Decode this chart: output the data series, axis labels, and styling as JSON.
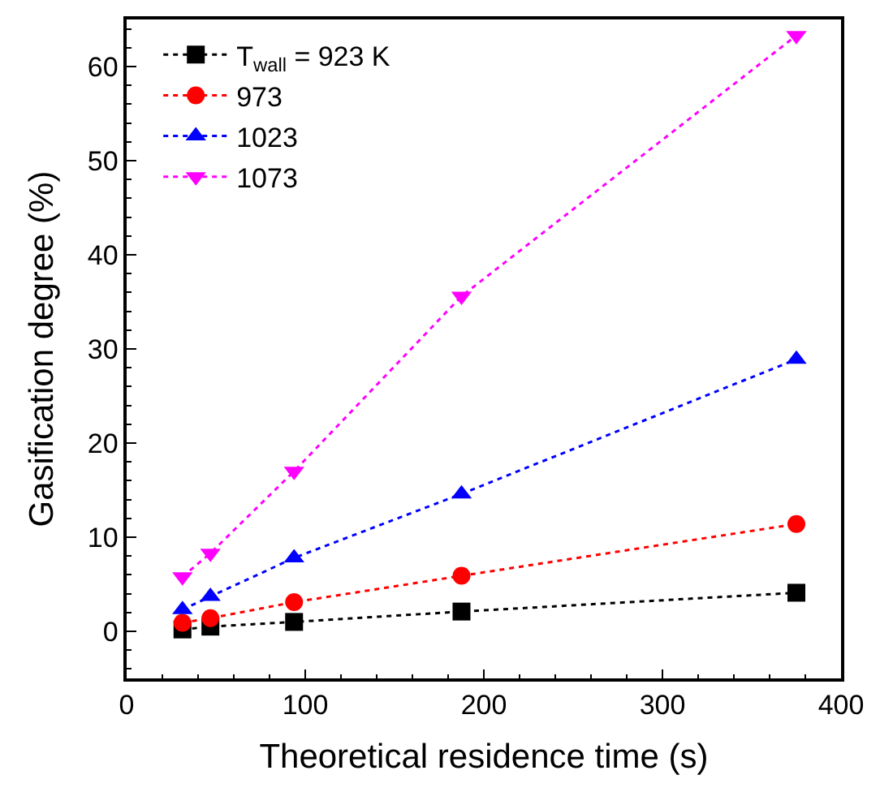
{
  "chart_data": {
    "type": "line",
    "xlabel": "Theoretical residence time (s)",
    "ylabel": "Gasification degree (%)",
    "x": [
      31.25,
      46.9,
      93.75,
      187.5,
      375
    ],
    "series": [
      {
        "name": "T$_{wall}$ = 923 K",
        "color": "#000000",
        "marker": "square",
        "values": [
          0.2,
          0.5,
          1.0,
          2.1,
          4.1
        ]
      },
      {
        "name": "973",
        "color": "#ff0000",
        "marker": "circle",
        "values": [
          0.9,
          1.4,
          3.1,
          5.9,
          11.4
        ]
      },
      {
        "name": "1023",
        "color": "#0000ff",
        "marker": "triangle",
        "values": [
          2.3,
          3.7,
          7.8,
          14.6,
          28.9
        ]
      },
      {
        "name": "1073",
        "color": "#ff00ff",
        "marker": "triangle-down",
        "values": [
          5.8,
          8.3,
          17.0,
          35.6,
          63.3
        ]
      }
    ],
    "xlim": [
      0,
      400
    ],
    "xticks": [
      0,
      100,
      200,
      300,
      400
    ],
    "ylim": [
      -5,
      65
    ],
    "yticks": [
      0,
      10,
      20,
      30,
      40,
      50,
      60
    ],
    "line_style": "dotted",
    "legend": "top left"
  }
}
